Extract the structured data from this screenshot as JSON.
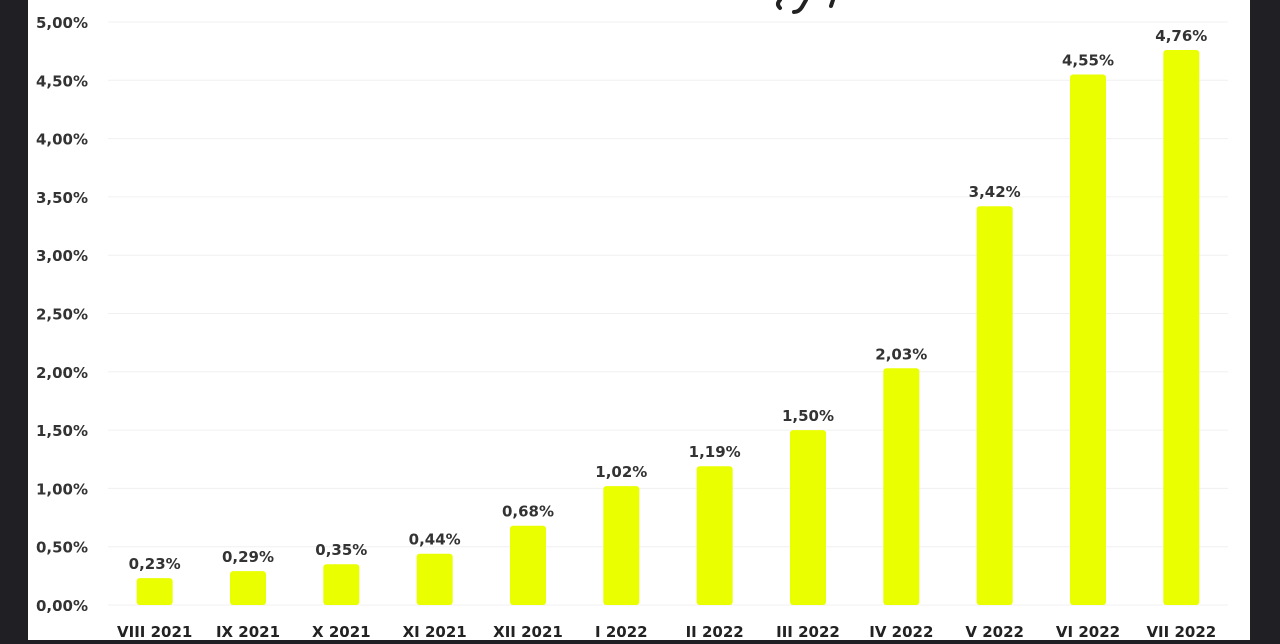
{
  "colors": {
    "background": "#1f1f24",
    "panel": "#ffffff",
    "bar": "#eaff00",
    "text": "#333333",
    "grid": "#f0f0f0"
  },
  "chart_data": {
    "type": "bar",
    "categories": [
      "VIII 2021",
      "IX 2021",
      "X 2021",
      "XI 2021",
      "XII 2021",
      "I 2022",
      "II 2022",
      "III 2022",
      "IV 2022",
      "V 2022",
      "VI 2022",
      "VII 2022"
    ],
    "values": [
      0.23,
      0.29,
      0.35,
      0.44,
      0.68,
      1.02,
      1.19,
      1.5,
      2.03,
      3.42,
      4.55,
      4.76
    ],
    "value_labels": [
      "0,23%",
      "0,29%",
      "0,35%",
      "0,44%",
      "0,68%",
      "1,02%",
      "1,19%",
      "1,50%",
      "2,03%",
      "3,42%",
      "4,55%",
      "4,76%"
    ],
    "ylim": [
      0,
      5
    ],
    "yticks": [
      0,
      0.5,
      1,
      1.5,
      2,
      2.5,
      3,
      3.5,
      4,
      4.5,
      5
    ],
    "ytick_labels": [
      "0,00%",
      "0,50%",
      "1,00%",
      "1,50%",
      "2,00%",
      "2,50%",
      "3,00%",
      "3,50%",
      "4,00%",
      "4,50%",
      "5,00%"
    ],
    "grid": true,
    "legend": "none"
  }
}
